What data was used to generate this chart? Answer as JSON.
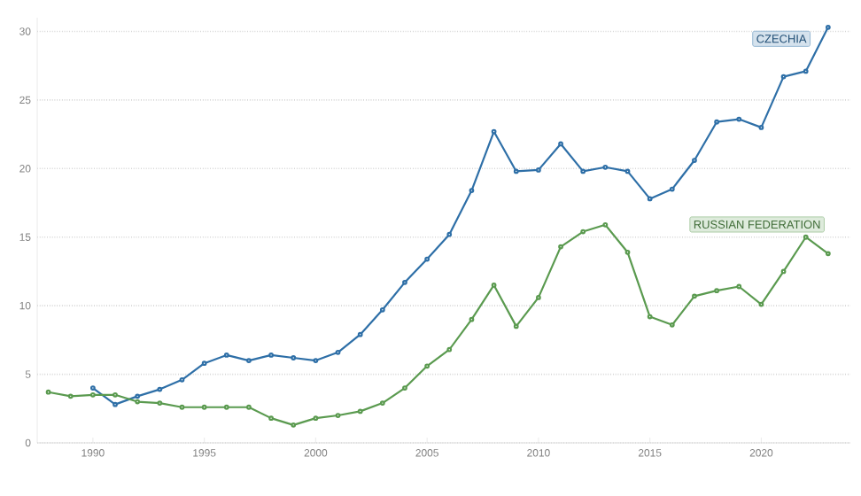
{
  "chart_data": {
    "type": "line",
    "x": [
      1988,
      1989,
      1990,
      1991,
      1992,
      1993,
      1994,
      1995,
      1996,
      1997,
      1998,
      1999,
      2000,
      2001,
      2002,
      2003,
      2004,
      2005,
      2006,
      2007,
      2008,
      2009,
      2010,
      2011,
      2012,
      2013,
      2014,
      2015,
      2016,
      2017,
      2018,
      2019,
      2020,
      2021,
      2022,
      2023
    ],
    "series": [
      {
        "name": "CZECHIA",
        "color": "#2e6fa7",
        "values": [
          null,
          null,
          4.0,
          2.8,
          3.4,
          3.9,
          4.6,
          5.8,
          6.4,
          6.0,
          6.4,
          6.2,
          6.0,
          6.6,
          7.9,
          9.7,
          11.7,
          13.4,
          15.2,
          18.4,
          22.7,
          19.8,
          19.9,
          21.8,
          19.8,
          20.1,
          19.8,
          17.8,
          18.5,
          20.6,
          23.4,
          23.6,
          23.0,
          26.7,
          27.1,
          30.3
        ]
      },
      {
        "name": "RUSSIAN FEDERATION",
        "color": "#5a9a4f",
        "values": [
          3.7,
          3.4,
          3.5,
          3.5,
          3.0,
          2.9,
          2.6,
          2.6,
          2.6,
          2.6,
          1.8,
          1.3,
          1.8,
          2.0,
          2.3,
          2.9,
          4.0,
          5.6,
          6.8,
          9.0,
          11.5,
          8.5,
          10.6,
          14.3,
          15.4,
          15.9,
          13.9,
          9.2,
          8.6,
          10.7,
          11.1,
          11.4,
          10.1,
          12.5,
          15.0,
          13.8
        ]
      }
    ],
    "xlim": [
      1987.5,
      2024
    ],
    "ylim": [
      0,
      31
    ],
    "xticks": [
      1990,
      1995,
      2000,
      2005,
      2010,
      2015,
      2020
    ],
    "yticks": [
      0,
      5,
      10,
      15,
      20,
      25,
      30
    ],
    "grid": "y",
    "marker": "circle",
    "line_style": "solid"
  }
}
